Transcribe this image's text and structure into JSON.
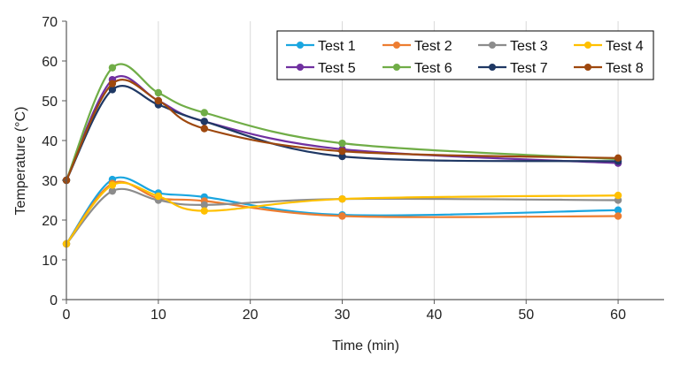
{
  "chart_data": {
    "type": "line",
    "title": "",
    "xlabel": "Time (min)",
    "ylabel": "Temperature (°C)",
    "xlim": [
      0,
      65
    ],
    "ylim": [
      0,
      70
    ],
    "xticks": [
      0,
      10,
      20,
      30,
      40,
      50,
      60
    ],
    "yticks": [
      0,
      10,
      20,
      30,
      40,
      50,
      60,
      70
    ],
    "xtick_labels": [
      "0",
      "10",
      "20",
      "30",
      "40",
      "50",
      "60"
    ],
    "ytick_labels": [
      "0",
      "10",
      "20",
      "30",
      "40",
      "50",
      "60",
      "70"
    ],
    "grid": "vertical",
    "legend_position": "top-right",
    "x": [
      0,
      5,
      10,
      15,
      30,
      60
    ],
    "series": [
      {
        "name": "Test 1",
        "color": "#1aa6e0",
        "values": [
          14,
          30.2,
          26.8,
          25.8,
          21.3,
          22.5
        ]
      },
      {
        "name": "Test 2",
        "color": "#ed7d31",
        "values": [
          14,
          29.2,
          25.5,
          24.8,
          21.0,
          21.0
        ]
      },
      {
        "name": "Test 3",
        "color": "#8c8c8c",
        "values": [
          14,
          27.3,
          25.0,
          23.8,
          25.3,
          25.0
        ]
      },
      {
        "name": "Test 4",
        "color": "#ffc000",
        "values": [
          14,
          28.8,
          26.0,
          22.3,
          25.3,
          26.2
        ]
      },
      {
        "name": "Test 5",
        "color": "#7030a0",
        "values": [
          30,
          55.3,
          50.0,
          44.8,
          37.8,
          34.3
        ]
      },
      {
        "name": "Test 6",
        "color": "#70ad47",
        "values": [
          30,
          58.3,
          52.0,
          47.0,
          39.3,
          35.3
        ]
      },
      {
        "name": "Test 7",
        "color": "#1f3864",
        "values": [
          30,
          52.8,
          49.0,
          44.8,
          36.0,
          34.8
        ]
      },
      {
        "name": "Test 8",
        "color": "#9e480e",
        "values": [
          30,
          54.3,
          50.0,
          43.0,
          37.3,
          35.6
        ]
      }
    ]
  }
}
